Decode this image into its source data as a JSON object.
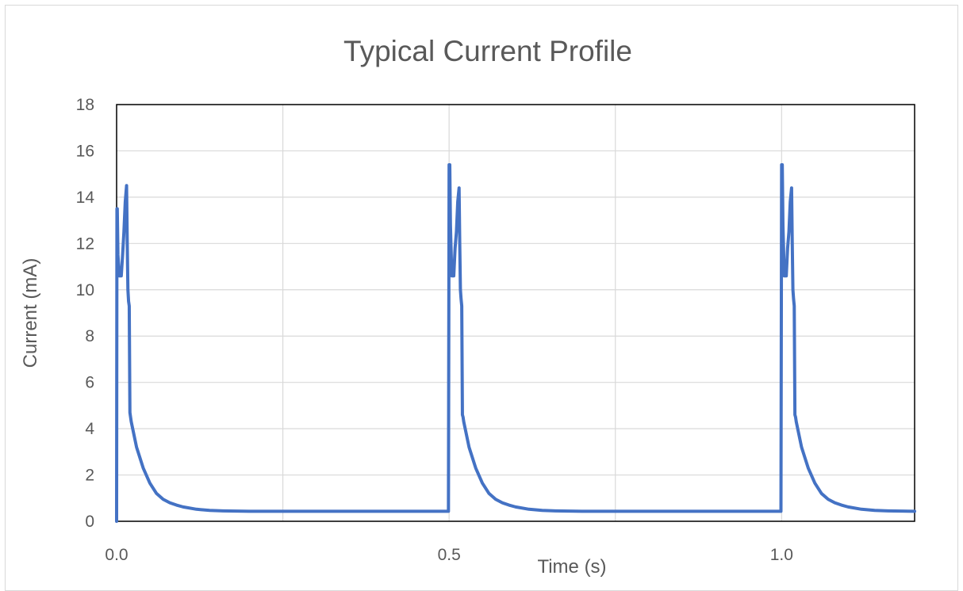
{
  "chart_data": {
    "type": "line",
    "title": "Typical Current Profile",
    "xlabel": "Time (s)",
    "ylabel": "Current (mA)",
    "xlim": [
      0,
      1.2
    ],
    "ylim": [
      0,
      18
    ],
    "grid": true,
    "legend": "none",
    "x_ticks": [
      0.0,
      0.5,
      1.0
    ],
    "x_tick_labels": [
      "0.0",
      "0.5",
      "1.0"
    ],
    "y_ticks": [
      0,
      2,
      4,
      6,
      8,
      10,
      12,
      14,
      16,
      18
    ],
    "y_tick_labels": [
      "0",
      "2",
      "4",
      "6",
      "8",
      "10",
      "12",
      "14",
      "16",
      "18"
    ],
    "line_color": "#4472c4",
    "series": [
      {
        "x": [
          0.0,
          0.0005,
          0.001,
          0.002,
          0.004,
          0.007,
          0.009,
          0.011,
          0.013,
          0.015,
          0.016,
          0.017,
          0.018,
          0.019,
          0.02,
          0.021,
          0.022,
          0.03,
          0.04,
          0.05,
          0.06,
          0.07,
          0.08,
          0.09,
          0.1,
          0.12,
          0.14,
          0.16,
          0.18,
          0.2,
          0.25,
          0.3,
          0.35,
          0.4,
          0.45,
          0.499,
          0.5,
          0.501,
          0.502,
          0.504,
          0.507,
          0.509,
          0.511,
          0.513,
          0.515,
          0.516,
          0.517,
          0.518,
          0.519,
          0.52,
          0.521,
          0.522,
          0.53,
          0.54,
          0.55,
          0.56,
          0.57,
          0.58,
          0.59,
          0.6,
          0.62,
          0.64,
          0.66,
          0.68,
          0.7,
          0.75,
          0.8,
          0.85,
          0.9,
          0.95,
          0.999,
          1.0,
          1.001,
          1.002,
          1.004,
          1.007,
          1.009,
          1.011,
          1.013,
          1.015,
          1.016,
          1.017,
          1.018,
          1.019,
          1.02,
          1.021,
          1.022,
          1.03,
          1.04,
          1.05,
          1.06,
          1.07,
          1.08,
          1.09,
          1.1,
          1.12,
          1.14,
          1.16,
          1.18,
          1.2
        ],
        "y": [
          0.0,
          13.5,
          13.5,
          11.5,
          10.6,
          10.6,
          11.5,
          12.5,
          13.8,
          14.5,
          12.0,
          10.0,
          9.5,
          9.3,
          4.7,
          4.5,
          4.3,
          3.2,
          2.3,
          1.65,
          1.2,
          0.95,
          0.8,
          0.7,
          0.62,
          0.52,
          0.47,
          0.45,
          0.44,
          0.43,
          0.43,
          0.43,
          0.43,
          0.43,
          0.43,
          0.43,
          15.4,
          15.4,
          12.8,
          10.6,
          10.6,
          11.8,
          12.5,
          13.8,
          14.4,
          12.0,
          10.0,
          9.6,
          9.3,
          4.6,
          4.5,
          4.3,
          3.2,
          2.3,
          1.65,
          1.2,
          0.95,
          0.8,
          0.7,
          0.62,
          0.52,
          0.47,
          0.45,
          0.44,
          0.43,
          0.43,
          0.43,
          0.43,
          0.43,
          0.43,
          0.43,
          15.4,
          15.4,
          12.8,
          10.6,
          10.6,
          11.8,
          12.5,
          13.8,
          14.4,
          12.0,
          10.0,
          9.6,
          9.3,
          4.6,
          4.5,
          4.3,
          3.2,
          2.3,
          1.65,
          1.2,
          0.95,
          0.8,
          0.7,
          0.62,
          0.52,
          0.47,
          0.45,
          0.44,
          0.43
        ]
      }
    ]
  }
}
